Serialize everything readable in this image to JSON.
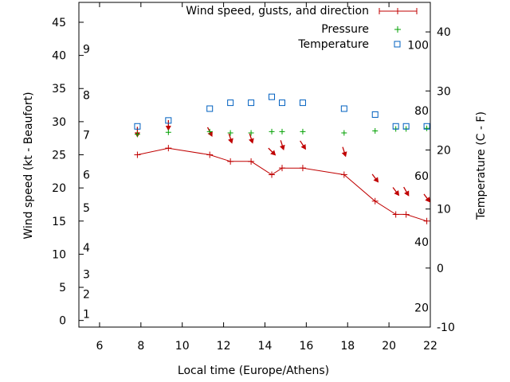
{
  "chart_data": {
    "type": "line",
    "xlabel": "Local time (Europe/Athens)",
    "ylabel": "Wind speed (kt - Beaufort)",
    "y2label": "Temperature (C - F)",
    "xlim": [
      5,
      22
    ],
    "ylim": [
      -1,
      48
    ],
    "y2lim": [
      -10,
      45
    ],
    "x_ticks": [
      6,
      8,
      10,
      12,
      14,
      16,
      18,
      20,
      22
    ],
    "y_ticks": [
      0,
      5,
      10,
      15,
      20,
      25,
      30,
      35,
      40,
      45
    ],
    "y2_ticks": [
      -10,
      0,
      10,
      20,
      30,
      40
    ],
    "beaufort_labels": [
      {
        "label": "1",
        "kt": 1
      },
      {
        "label": "2",
        "kt": 4
      },
      {
        "label": "3",
        "kt": 7
      },
      {
        "label": "4",
        "kt": 11
      },
      {
        "label": "5",
        "kt": 17
      },
      {
        "label": "6",
        "kt": 22
      },
      {
        "label": "7",
        "kt": 28
      },
      {
        "label": "8",
        "kt": 34
      },
      {
        "label": "9",
        "kt": 41
      }
    ],
    "fahrenheit_labels": [
      {
        "label": "20",
        "celsius": -6.7
      },
      {
        "label": "40",
        "celsius": 4.4
      },
      {
        "label": "60",
        "celsius": 15.6
      },
      {
        "label": "80",
        "celsius": 26.7
      },
      {
        "label": "100",
        "celsius": 37.8
      }
    ],
    "legend": {
      "position": "top-right",
      "entries": [
        "Wind speed, gusts, and direction",
        "Pressure",
        "Temperature"
      ]
    },
    "series": [
      {
        "name": "Wind speed, gusts, and direction",
        "color": "#c00000",
        "marker": "plus-line",
        "x": [
          7.83,
          9.33,
          11.33,
          12.33,
          13.33,
          14.33,
          14.83,
          15.83,
          17.83,
          19.33,
          20.33,
          20.83,
          21.83
        ],
        "y": [
          25,
          26,
          25,
          24,
          24,
          22,
          23,
          23,
          22,
          18,
          16,
          16,
          15
        ],
        "direction_arrows": [
          {
            "x": 7.83,
            "y": 28.5,
            "dx": 0,
            "dy": -1
          },
          {
            "x": 9.33,
            "y": 29.5,
            "dx": 0,
            "dy": -1
          },
          {
            "x": 11.33,
            "y": 28.5,
            "dx": 0.45,
            "dy": -0.9
          },
          {
            "x": 12.33,
            "y": 27.5,
            "dx": 0.3,
            "dy": -0.95
          },
          {
            "x": 13.33,
            "y": 27.5,
            "dx": 0.3,
            "dy": -0.95
          },
          {
            "x": 14.33,
            "y": 25.5,
            "dx": 0.7,
            "dy": -0.7
          },
          {
            "x": 14.83,
            "y": 26.5,
            "dx": 0.3,
            "dy": -0.95
          },
          {
            "x": 15.83,
            "y": 26.5,
            "dx": 0.55,
            "dy": -0.85
          },
          {
            "x": 17.83,
            "y": 25.5,
            "dx": 0.3,
            "dy": -0.95
          },
          {
            "x": 19.33,
            "y": 21.5,
            "dx": 0.6,
            "dy": -0.8
          },
          {
            "x": 20.33,
            "y": 19.5,
            "dx": 0.6,
            "dy": -0.8
          },
          {
            "x": 20.83,
            "y": 19.5,
            "dx": 0.5,
            "dy": -0.87
          },
          {
            "x": 21.83,
            "y": 18.5,
            "dx": 0.6,
            "dy": -0.8
          }
        ]
      },
      {
        "name": "Pressure",
        "color": "#00a000",
        "marker": "plus",
        "x": [
          7.83,
          9.33,
          11.33,
          12.33,
          13.33,
          14.33,
          14.83,
          15.83,
          17.83,
          19.33,
          20.33,
          20.83,
          21.83
        ],
        "y": [
          28.1,
          28.4,
          28.5,
          28.3,
          28.3,
          28.5,
          28.5,
          28.5,
          28.3,
          28.6,
          28.9,
          28.9,
          29.0
        ]
      },
      {
        "name": "Temperature",
        "color": "#0060c0",
        "marker": "square",
        "axis": "y2",
        "x": [
          7.83,
          9.33,
          11.33,
          12.33,
          13.33,
          14.33,
          14.83,
          15.83,
          17.83,
          19.33,
          20.33,
          20.83,
          21.83
        ],
        "y": [
          24,
          25,
          27,
          28,
          28,
          29,
          28,
          28,
          27,
          26,
          24,
          24,
          24
        ]
      }
    ]
  }
}
